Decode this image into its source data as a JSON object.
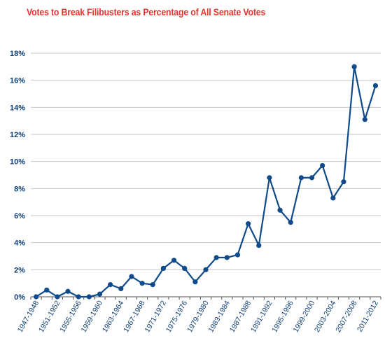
{
  "colors": {
    "title": "#e3342f",
    "series": "#0f4a8a",
    "text": "#0f3d73",
    "grid": "#c4c4c4",
    "axis": "#555555"
  },
  "chart_data": {
    "type": "line",
    "title": "Votes to Break Filibusters as Percentage of All Senate Votes",
    "xlabel": "",
    "ylabel": "",
    "ylim": [
      0,
      18
    ],
    "grid": true,
    "y_ticks": [
      "0%",
      "2%",
      "4%",
      "6%",
      "8%",
      "10%",
      "12%",
      "14%",
      "16%",
      "18%"
    ],
    "x": [
      "1947-1948",
      "1949-1950",
      "1951-1952",
      "1953-1954",
      "1955-1956",
      "1957-1958",
      "1959-1960",
      "1961-1962",
      "1963-1964",
      "1965-1966",
      "1967-1968",
      "1969-1970",
      "1971-1972",
      "1973-1974",
      "1975-1976",
      "1977-1978",
      "1979-1980",
      "1981-1982",
      "1983-1984",
      "1985-1986",
      "1987-1988",
      "1989-1990",
      "1991-1992",
      "1993-1994",
      "1995-1996",
      "1997-1998",
      "1999-2000",
      "2001-2002",
      "2003-2004",
      "2005-2006",
      "2007-2008",
      "2009-2010",
      "2011-2012"
    ],
    "x_tick_labels": [
      "1947-1948",
      "1951-1952",
      "1955-1956",
      "1959-1960",
      "1963-1964",
      "1967-1968",
      "1971-1972",
      "1975-1976",
      "1979-1980",
      "1983-1984",
      "1987-1988",
      "1991-1992",
      "1995-1996",
      "1999-2000",
      "2003-2004",
      "2007-2008",
      "2011-2012"
    ],
    "series": [
      {
        "values": [
          0.0,
          0.5,
          0.0,
          0.4,
          0.0,
          0.0,
          0.2,
          0.9,
          0.6,
          1.5,
          1.0,
          0.9,
          2.1,
          2.7,
          2.1,
          1.1,
          2.0,
          2.9,
          2.9,
          3.1,
          5.4,
          3.8,
          8.8,
          6.4,
          5.5,
          8.8,
          8.8,
          9.7,
          7.3,
          8.5,
          17.0,
          13.1,
          15.6
        ]
      }
    ]
  }
}
